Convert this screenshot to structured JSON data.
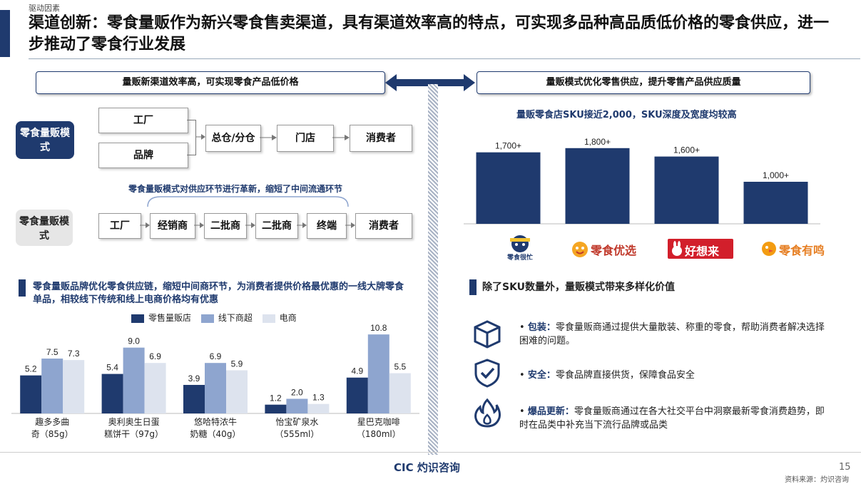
{
  "header": {
    "section_tag": "驱动因素",
    "title": "渠道创新：零食量贩作为新兴零食售卖渠道，具有渠道效率高的特点，可实现多品种高品质低价格的零食供应，进一步推动了零食行业发展"
  },
  "left": {
    "top_box": "量贩新渠道效率高，可实现零食产品低价格",
    "model_a": {
      "label": "零食量贩模式",
      "sources": [
        "工厂",
        "品牌"
      ],
      "chain": [
        "总仓/分仓",
        "门店",
        "消费者"
      ]
    },
    "caption": "零食量贩模式对供应环节进行革新，缩短了中间流通环节",
    "model_b": {
      "label": "零食量贩模式",
      "chain": [
        "工厂",
        "经销商",
        "二批商",
        "二批商",
        "终端",
        "消费者"
      ]
    },
    "price_heading": "零食量贩品牌优化零食供应链，缩短中间商环节，为消费者提供价格最优惠的一线大牌零食单品，相较线下传统和线上电商价格均有优惠"
  },
  "right": {
    "top_box": "量贩模式优化零售供应，提升零售产品供应质量",
    "sku_title": "量贩零食店SKU接近2,000，SKU深度及宽度均较高",
    "brands": [
      "零食很忙",
      "零食优选",
      "好想来",
      "零食有鸣"
    ],
    "value_heading": "除了SKU数量外，量贩模式带来多样化价值",
    "bullets": [
      {
        "icon": "box-icon",
        "key": "包装：",
        "text": "零食量贩商通过提供大量散装、称重的零食，帮助消费者解决选择困难的问题。"
      },
      {
        "icon": "shield-check-icon",
        "key": "安全：",
        "text": "零食品牌直接供货，保障食品安全"
      },
      {
        "icon": "flame-icon",
        "key": "爆品更新：",
        "text": "零食量贩商通过在各大社交平台中洞察最新零食消费趋势，即时在品类中补充当下流行品牌或品类"
      }
    ]
  },
  "footer": {
    "logo_text": "CIC 灼识咨询",
    "page_number": "15",
    "source": "资料来源：灼识咨询"
  },
  "colors": {
    "navy": "#1f3a6e",
    "mid_blue": "#8ea5cf",
    "light": "#dde3ee"
  },
  "chart_data": [
    {
      "type": "bar",
      "categories": [
        "零食很忙",
        "零食优选",
        "好想来",
        "零食有鸣"
      ],
      "values": [
        1700,
        1800,
        1600,
        1000
      ],
      "value_labels": [
        "1,700+",
        "1,800+",
        "1,600+",
        "1,000+"
      ],
      "title": "量贩零食店SKU接近2,000，SKU深度及宽度均较高",
      "ylim": [
        0,
        2000
      ]
    },
    {
      "type": "bar",
      "categories": [
        "趣多多曲奇（85g）",
        "奥利奥生日蛋糕饼干（97g）",
        "悠哈特浓牛奶糖（40g）",
        "怡宝矿泉水（555ml）",
        "星巴克咖啡（180ml）"
      ],
      "category_lines": [
        [
          "趣多多曲",
          "奇（85g）"
        ],
        [
          "奥利奥生日蛋",
          "糕饼干（97g）"
        ],
        [
          "悠哈特浓牛",
          "奶糖（40g）"
        ],
        [
          "怡宝矿泉水",
          "（555ml）"
        ],
        [
          "星巴克咖啡",
          "（180ml）"
        ]
      ],
      "series": [
        {
          "name": "零售量贩店",
          "color": "#1f3a6e",
          "values": [
            5.2,
            5.4,
            3.9,
            1.2,
            4.9
          ]
        },
        {
          "name": "线下商超",
          "color": "#8ea5cf",
          "values": [
            7.5,
            9.0,
            6.9,
            2.0,
            10.8
          ]
        },
        {
          "name": "电商",
          "color": "#dde3ee",
          "values": [
            7.3,
            6.9,
            5.9,
            1.3,
            5.5
          ]
        }
      ],
      "ylim": [
        0,
        11.5
      ]
    }
  ]
}
